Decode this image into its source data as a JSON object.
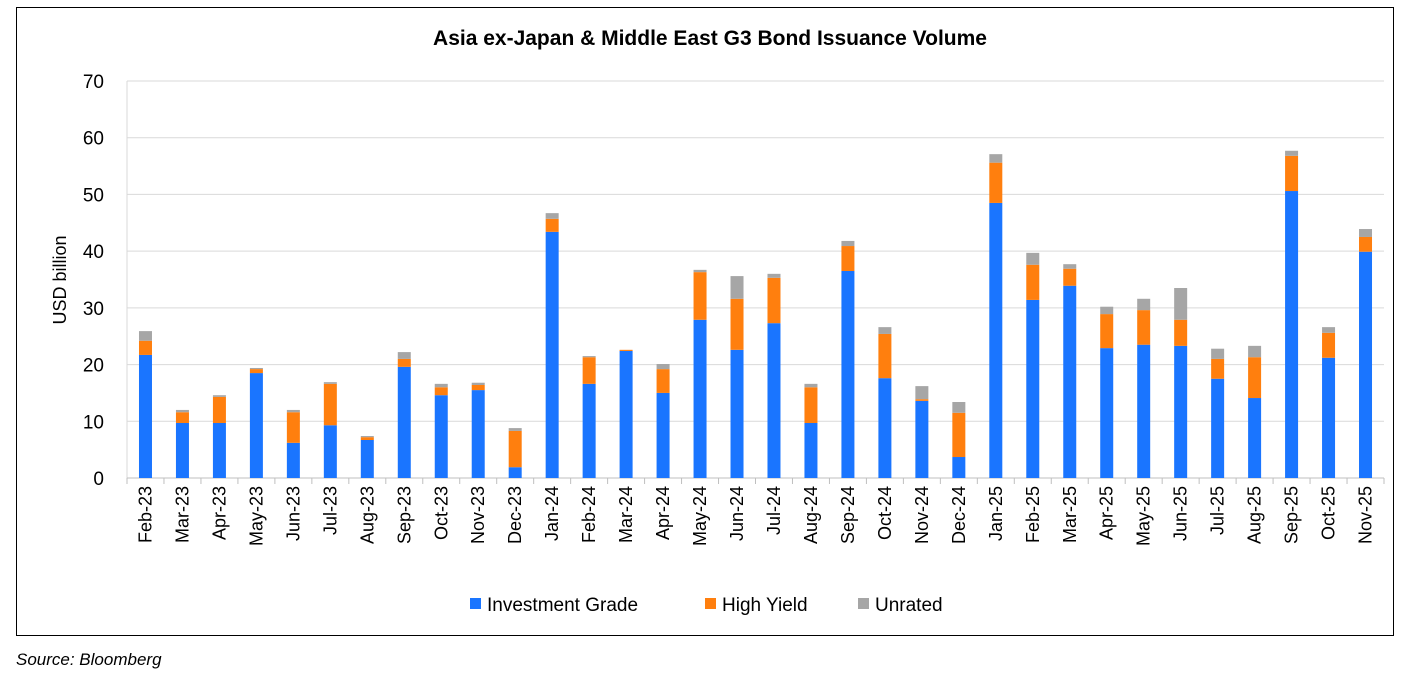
{
  "chart_data": {
    "type": "bar",
    "stacked": true,
    "title": "Asia ex-Japan & Middle East G3 Bond Issuance Volume",
    "xlabel": "",
    "ylabel": "USD billion",
    "ylim": [
      0,
      70
    ],
    "yticks": [
      0,
      10,
      20,
      30,
      40,
      50,
      60,
      70
    ],
    "grid": true,
    "legend_position": "bottom",
    "categories": [
      "Feb-23",
      "Mar-23",
      "Apr-23",
      "May-23",
      "Jun-23",
      "Jul-23",
      "Aug-23",
      "Sep-23",
      "Oct-23",
      "Nov-23",
      "Dec-23",
      "Jan-24",
      "Feb-24",
      "Mar-24",
      "Apr-24",
      "May-24",
      "Jun-24",
      "Jul-24",
      "Aug-24",
      "Sep-24",
      "Oct-24",
      "Nov-24",
      "Dec-24",
      "Jan-25",
      "Feb-25",
      "Mar-25",
      "Apr-25",
      "May-25",
      "Jun-25",
      "Jul-25",
      "Aug-25",
      "Sep-25",
      "Oct-25",
      "Nov-25"
    ],
    "series": [
      {
        "name": "Investment Grade",
        "color": "#1a75ff",
        "values": [
          21.7,
          9.7,
          9.7,
          18.5,
          6.2,
          9.3,
          6.7,
          19.6,
          14.6,
          15.5,
          1.9,
          43.4,
          16.6,
          22.4,
          15.0,
          27.9,
          22.6,
          27.3,
          9.7,
          36.5,
          17.6,
          13.6,
          3.7,
          48.5,
          31.4,
          33.9,
          22.9,
          23.5,
          23.3,
          17.5,
          14.1,
          50.6,
          21.2,
          39.9
        ]
      },
      {
        "name": "High Yield",
        "color": "#ff7f0e",
        "values": [
          2.5,
          1.9,
          4.6,
          0.7,
          5.4,
          7.3,
          0.5,
          1.4,
          1.4,
          0.9,
          6.4,
          2.3,
          4.7,
          0.2,
          4.2,
          8.4,
          9.0,
          8.0,
          6.3,
          4.4,
          7.8,
          0.3,
          7.8,
          7.1,
          6.2,
          3.0,
          6.0,
          6.1,
          4.6,
          3.5,
          7.2,
          6.2,
          4.4,
          2.6
        ]
      },
      {
        "name": "Unrated",
        "color": "#a6a6a6",
        "values": [
          1.7,
          0.4,
          0.3,
          0.2,
          0.4,
          0.3,
          0.2,
          1.2,
          0.6,
          0.4,
          0.5,
          1.0,
          0.2,
          0.0,
          0.9,
          0.4,
          4.0,
          0.7,
          0.6,
          0.9,
          1.2,
          2.3,
          1.9,
          1.5,
          2.1,
          0.8,
          1.3,
          2.0,
          5.6,
          1.8,
          2.0,
          0.9,
          1.0,
          1.4
        ]
      }
    ]
  },
  "source": "Source: Bloomberg"
}
